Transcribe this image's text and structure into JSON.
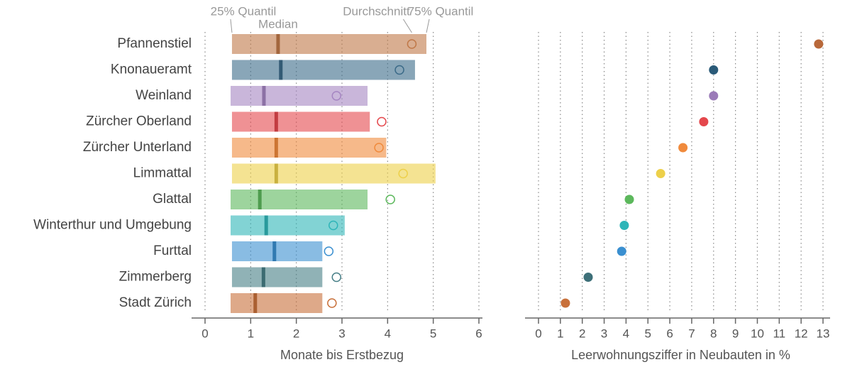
{
  "chart_data": [
    {
      "type": "range",
      "xlabel": "Monate bis Erstbezug",
      "categories": [
        "Pfannenstiel",
        "Knonaueramt",
        "Weinland",
        "Zürcher Oberland",
        "Zürcher Unterland",
        "Limmattal",
        "Glattal",
        "Winterthur und Umgebung",
        "Furttal",
        "Zimmerberg",
        "Stadt Zürich"
      ],
      "colors": [
        "#c07848",
        "#3b6a88",
        "#a585c2",
        "#e4474c",
        "#f08a3c",
        "#edd04a",
        "#5cb85c",
        "#2fb5b8",
        "#3a8fd0",
        "#467e86",
        "#c8703a"
      ],
      "series": [
        {
          "name": "25% Quantil",
          "values": [
            0.59,
            0.59,
            0.56,
            0.59,
            0.59,
            0.59,
            0.56,
            0.56,
            0.59,
            0.59,
            0.56
          ]
        },
        {
          "name": "Median",
          "values": [
            1.6,
            1.66,
            1.29,
            1.56,
            1.56,
            1.56,
            1.2,
            1.34,
            1.52,
            1.28,
            1.1
          ]
        },
        {
          "name": "Durchschnitt",
          "values": [
            4.53,
            4.26,
            2.88,
            3.87,
            3.81,
            4.34,
            4.06,
            2.81,
            2.71,
            2.88,
            2.78
          ]
        },
        {
          "name": "75% Quantil",
          "values": [
            4.85,
            4.6,
            3.56,
            3.61,
            3.97,
            5.05,
            3.56,
            3.06,
            2.57,
            2.57,
            2.57
          ]
        }
      ],
      "xlim": [
        0,
        6
      ],
      "xticks": [
        0,
        1,
        2,
        3,
        4,
        5,
        6
      ],
      "grid": true
    },
    {
      "type": "dot",
      "xlabel": "Leerwohnungsziffer in Neubauten in %",
      "colors": [
        "#b8683a",
        "#2a5a78",
        "#9b7bb8",
        "#e4474c",
        "#f08a3c",
        "#edd04a",
        "#5cb85c",
        "#2fb5b8",
        "#3a8fd0",
        "#3d6f78",
        "#c8703a"
      ],
      "values": [
        12.8,
        8.0,
        8.0,
        7.55,
        6.6,
        5.58,
        4.15,
        3.92,
        3.8,
        2.27,
        1.23
      ],
      "xlim": [
        0,
        13
      ],
      "xticks": [
        0,
        1,
        2,
        3,
        4,
        5,
        6,
        7,
        8,
        9,
        10,
        11,
        12,
        13
      ],
      "grid": true
    }
  ]
}
